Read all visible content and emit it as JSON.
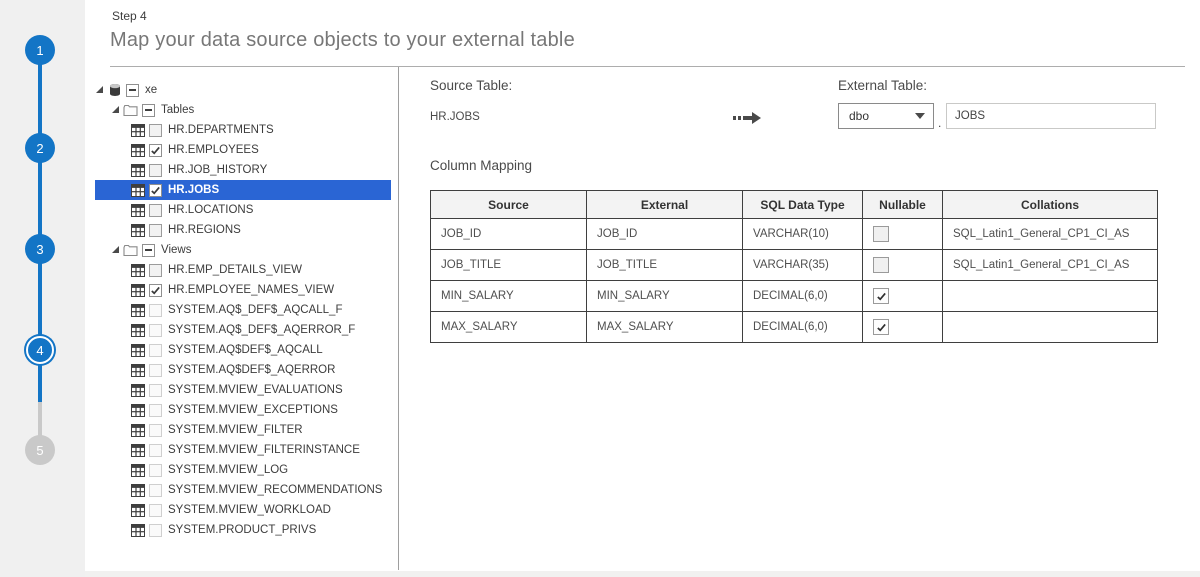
{
  "colors": {
    "stepper_blue": "#1375c6",
    "stepper_inactive": "#c9c9c9",
    "selection_blue": "#2a65d4"
  },
  "stepper": {
    "steps": [
      {
        "number": "1",
        "state": "done"
      },
      {
        "number": "2",
        "state": "done"
      },
      {
        "number": "3",
        "state": "done"
      },
      {
        "number": "4",
        "state": "current"
      },
      {
        "number": "5",
        "state": "upcoming"
      }
    ]
  },
  "header": {
    "step_label": "Step 4",
    "title": "Map your data source objects to your external table"
  },
  "tree": {
    "items": [
      {
        "label": "xe",
        "level": 0,
        "icon": "database",
        "checkbox": "indeterminate",
        "expanded": true
      },
      {
        "label": "Tables",
        "level": 1,
        "icon": "folder",
        "checkbox": "indeterminate",
        "expanded": true
      },
      {
        "label": "HR.DEPARTMENTS",
        "level": 2,
        "icon": "table",
        "checkbox": "unchecked"
      },
      {
        "label": "HR.EMPLOYEES",
        "level": 2,
        "icon": "table",
        "checkbox": "checked"
      },
      {
        "label": "HR.JOB_HISTORY",
        "level": 2,
        "icon": "table",
        "checkbox": "unchecked"
      },
      {
        "label": "HR.JOBS",
        "level": 2,
        "icon": "table",
        "checkbox": "checked",
        "selected": true
      },
      {
        "label": "HR.LOCATIONS",
        "level": 2,
        "icon": "table",
        "checkbox": "unchecked"
      },
      {
        "label": "HR.REGIONS",
        "level": 2,
        "icon": "table",
        "checkbox": "unchecked"
      },
      {
        "label": "Views",
        "level": 1,
        "icon": "folder",
        "checkbox": "indeterminate",
        "expanded": true
      },
      {
        "label": "HR.EMP_DETAILS_VIEW",
        "level": 2,
        "icon": "table",
        "checkbox": "unchecked"
      },
      {
        "label": "HR.EMPLOYEE_NAMES_VIEW",
        "level": 2,
        "icon": "table",
        "checkbox": "checked"
      },
      {
        "label": "SYSTEM.AQ$_DEF$_AQCALL_F",
        "level": 2,
        "icon": "table",
        "checkbox": "unchecked",
        "disabled": true
      },
      {
        "label": "SYSTEM.AQ$_DEF$_AQERROR_F",
        "level": 2,
        "icon": "table",
        "checkbox": "unchecked",
        "disabled": true
      },
      {
        "label": "SYSTEM.AQ$DEF$_AQCALL",
        "level": 2,
        "icon": "table",
        "checkbox": "unchecked",
        "disabled": true
      },
      {
        "label": "SYSTEM.AQ$DEF$_AQERROR",
        "level": 2,
        "icon": "table",
        "checkbox": "unchecked",
        "disabled": true
      },
      {
        "label": "SYSTEM.MVIEW_EVALUATIONS",
        "level": 2,
        "icon": "table",
        "checkbox": "unchecked",
        "disabled": true
      },
      {
        "label": "SYSTEM.MVIEW_EXCEPTIONS",
        "level": 2,
        "icon": "table",
        "checkbox": "unchecked",
        "disabled": true
      },
      {
        "label": "SYSTEM.MVIEW_FILTER",
        "level": 2,
        "icon": "table",
        "checkbox": "unchecked",
        "disabled": true
      },
      {
        "label": "SYSTEM.MVIEW_FILTERINSTANCE",
        "level": 2,
        "icon": "table",
        "checkbox": "unchecked",
        "disabled": true
      },
      {
        "label": "SYSTEM.MVIEW_LOG",
        "level": 2,
        "icon": "table",
        "checkbox": "unchecked",
        "disabled": true
      },
      {
        "label": "SYSTEM.MVIEW_RECOMMENDATIONS",
        "level": 2,
        "icon": "table",
        "checkbox": "unchecked",
        "disabled": true
      },
      {
        "label": "SYSTEM.MVIEW_WORKLOAD",
        "level": 2,
        "icon": "table",
        "checkbox": "unchecked",
        "disabled": true
      },
      {
        "label": "SYSTEM.PRODUCT_PRIVS",
        "level": 2,
        "icon": "table",
        "checkbox": "unchecked",
        "disabled": true
      }
    ]
  },
  "mapping": {
    "source_table_label": "Source Table:",
    "source_table_value": "HR.JOBS",
    "external_table_label": "External Table:",
    "schema_value": "dbo",
    "name_separator": ".",
    "table_name_value": "JOBS",
    "section_title": "Column Mapping",
    "columns": [
      "Source",
      "External",
      "SQL Data Type",
      "Nullable",
      "Collations"
    ],
    "rows": [
      {
        "source": "JOB_ID",
        "external": "JOB_ID",
        "sql_type": "VARCHAR(10)",
        "nullable": false,
        "collation": "SQL_Latin1_General_CP1_CI_AS"
      },
      {
        "source": "JOB_TITLE",
        "external": "JOB_TITLE",
        "sql_type": "VARCHAR(35)",
        "nullable": false,
        "collation": "SQL_Latin1_General_CP1_CI_AS"
      },
      {
        "source": "MIN_SALARY",
        "external": "MIN_SALARY",
        "sql_type": "DECIMAL(6,0)",
        "nullable": true,
        "collation": ""
      },
      {
        "source": "MAX_SALARY",
        "external": "MAX_SALARY",
        "sql_type": "DECIMAL(6,0)",
        "nullable": true,
        "collation": ""
      }
    ]
  }
}
